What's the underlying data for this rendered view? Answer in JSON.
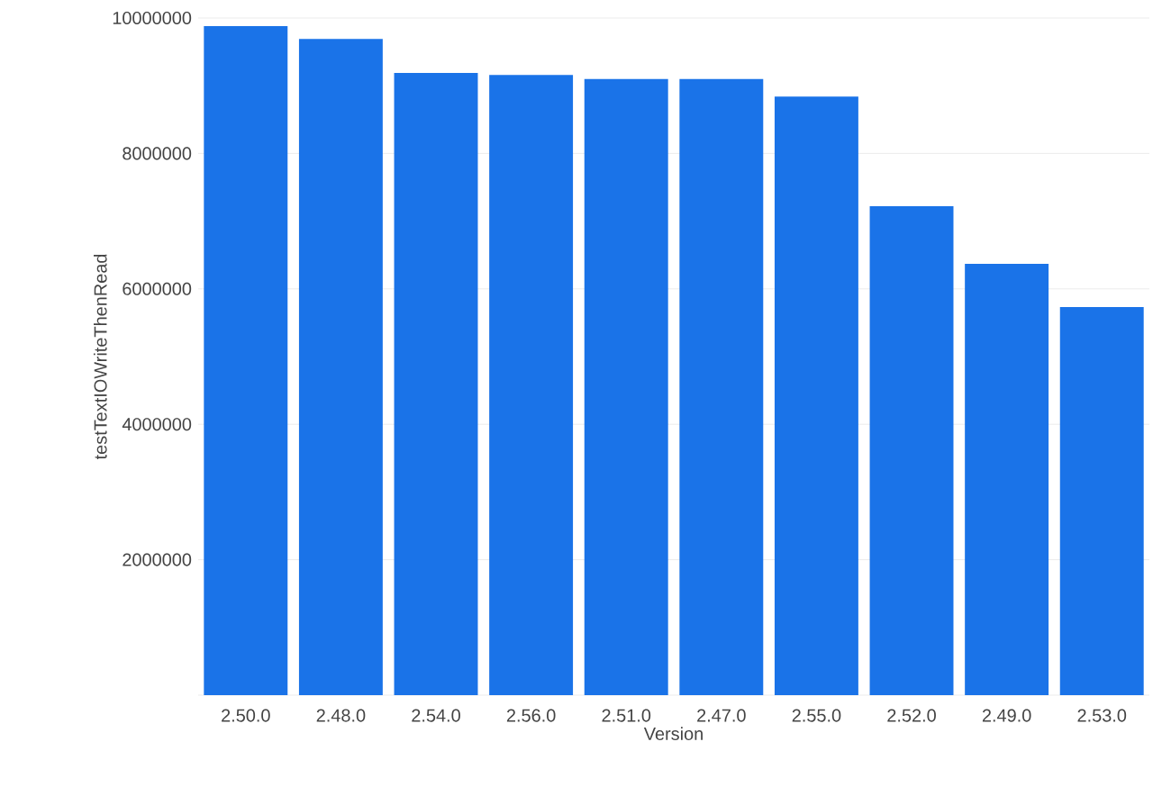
{
  "chart_data": {
    "type": "bar",
    "xlabel": "Version",
    "ylabel": "testTextIOWriteThenRead",
    "categories": [
      "2.50.0",
      "2.48.0",
      "2.54.0",
      "2.56.0",
      "2.51.0",
      "2.47.0",
      "2.55.0",
      "2.52.0",
      "2.49.0",
      "2.53.0"
    ],
    "values": [
      9880000,
      9690000,
      9190000,
      9160000,
      9100000,
      9100000,
      8840000,
      7220000,
      6370000,
      5730000
    ],
    "color": "#1a73e8",
    "ylim": [
      0,
      10000000
    ],
    "yticks": [
      2000000,
      4000000,
      6000000,
      8000000,
      10000000
    ],
    "grid": "y"
  }
}
